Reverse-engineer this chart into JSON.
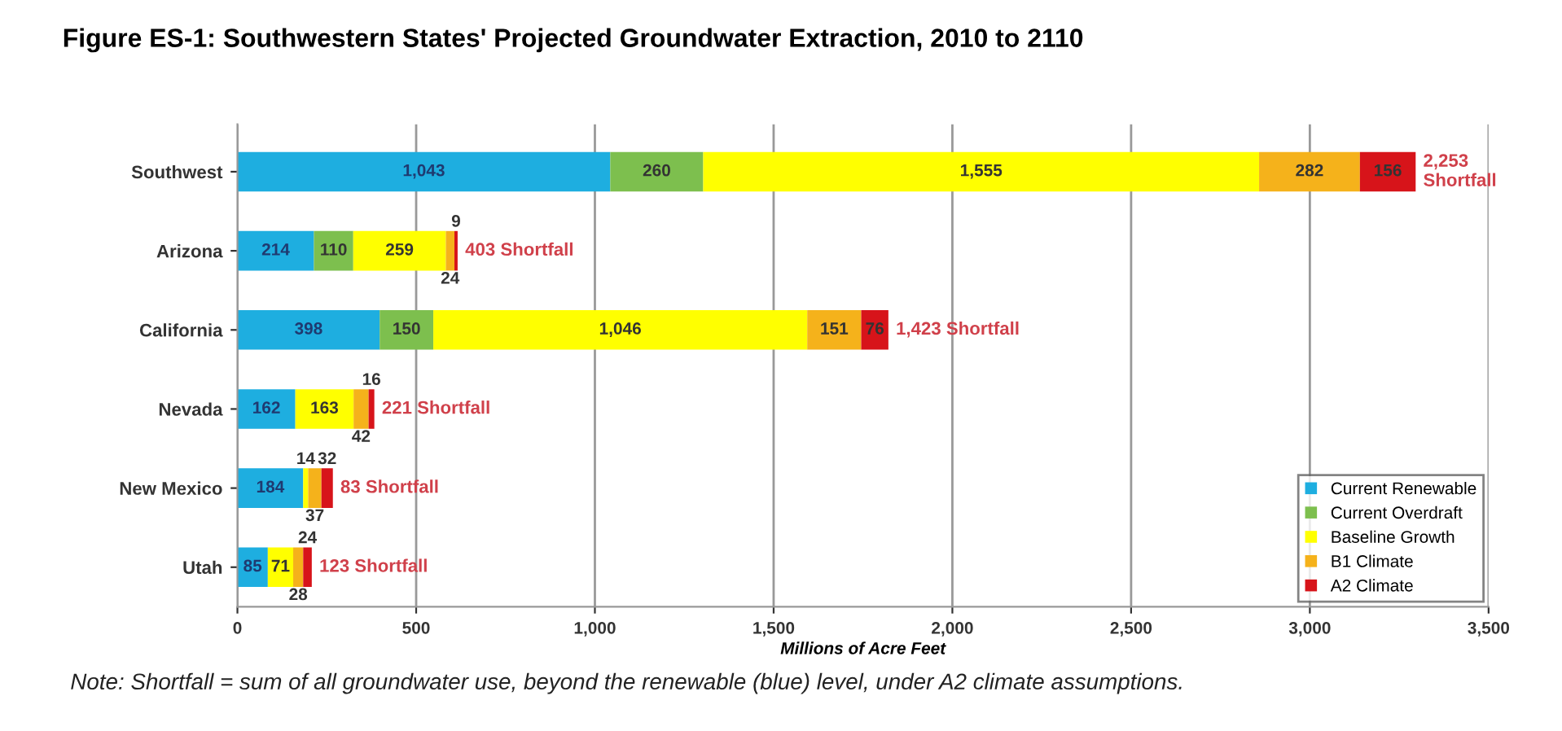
{
  "chart_data": {
    "type": "bar",
    "orientation": "horizontal",
    "stacked": true,
    "title": "Figure ES-1: Southwestern States' Projected Groundwater Extraction, 2010 to 2110",
    "xlabel": "Millions of Acre Feet",
    "categories": [
      "Southwest",
      "Arizona",
      "California",
      "Nevada",
      "New Mexico",
      "Utah"
    ],
    "series": [
      {
        "name": "Current Renewable",
        "color": "#1eaee0",
        "values": [
          1043,
          214,
          398,
          162,
          184,
          85
        ],
        "value_labels": [
          "1,043",
          "214",
          "398",
          "162",
          "184",
          "85"
        ]
      },
      {
        "name": "Current Overdraft",
        "color": "#7dbf4e",
        "values": [
          260,
          110,
          150,
          0,
          0,
          0
        ],
        "value_labels": [
          "260",
          "110",
          "150",
          null,
          null,
          null
        ]
      },
      {
        "name": "Baseline Growth",
        "color": "#ffff00",
        "values": [
          1555,
          259,
          1046,
          163,
          14,
          71
        ],
        "value_labels": [
          "1,555",
          "259",
          "1,046",
          "163",
          "14",
          "71"
        ]
      },
      {
        "name": "B1 Climate",
        "color": "#f5b21b",
        "values": [
          282,
          24,
          151,
          42,
          37,
          28
        ],
        "value_labels": [
          "282",
          "24",
          "151",
          "42",
          "37",
          "28"
        ]
      },
      {
        "name": "A2 Climate",
        "color": "#d7141a",
        "values": [
          156,
          9,
          76,
          16,
          32,
          24
        ],
        "value_labels": [
          "156",
          "9",
          "76",
          "16",
          "32",
          "24"
        ]
      }
    ],
    "xlim": [
      0,
      3500
    ],
    "xticks": [
      0,
      {
        "value": 500,
        "label": "500"
      },
      {
        "value": 1000,
        "label": "1,000"
      },
      {
        "value": 1500,
        "label": "1,500"
      },
      {
        "value": 2000,
        "label": "2,000"
      },
      {
        "value": 2500,
        "label": "2,500"
      },
      {
        "value": 3000,
        "label": "3,000"
      },
      {
        "value": 3500,
        "label": "3,500"
      }
    ],
    "grid": "x",
    "legend": "bottom right",
    "annotations": [
      {
        "text": "2,253 Shortfall",
        "x": 3296,
        "y": "Southwest"
      },
      {
        "text": "403 Shortfall",
        "x": 616,
        "y": "Arizona"
      },
      {
        "text": "1,423 Shortfall",
        "x": 1821,
        "y": "California"
      },
      {
        "text": "221 Shortfall",
        "x": 383,
        "y": "Nevada"
      },
      {
        "text": "83 Shortfall",
        "x": 267,
        "y": "New Mexico"
      },
      {
        "text": "123 Shortfall",
        "x": 208,
        "y": "Utah"
      },
      "Note: Shortfall = sum of all groundwater use, beyond the renewable (blue) level, under A2 climate assumptions."
    ]
  }
}
